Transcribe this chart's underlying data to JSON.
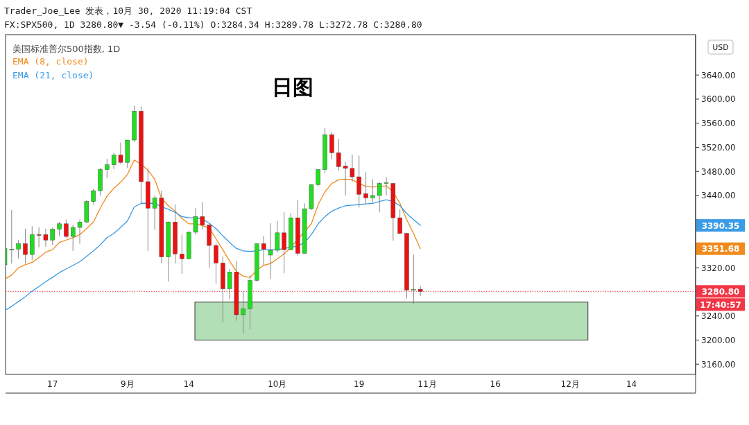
{
  "chart_data": {
    "type": "candlestick",
    "title": "日图",
    "subtitle": "Trader_Joe_Lee 发表，10月 30, 2020 11:19:04 CST",
    "categories": [
      null,
      null,
      null,
      null,
      null,
      null,
      null,
      "17",
      null,
      null,
      null,
      null,
      null,
      null,
      null,
      null,
      null,
      null,
      "9月",
      null,
      null,
      null,
      null,
      null,
      null,
      null,
      null,
      "14",
      null,
      null,
      null,
      null,
      null,
      null,
      null,
      null,
      null,
      null,
      null,
      null,
      "10月",
      null,
      null,
      null,
      null,
      null,
      null,
      null,
      null,
      null,
      null,
      null,
      "19",
      null,
      null,
      null,
      null,
      null,
      null,
      null,
      null,
      null,
      "11月",
      null,
      null,
      null,
      null,
      null,
      null,
      null,
      null,
      null,
      "16",
      null,
      null,
      null,
      null,
      null,
      null,
      null,
      null,
      null,
      null,
      "12月",
      null,
      null,
      null,
      null,
      null,
      null,
      null,
      null,
      "14",
      null,
      null,
      null,
      null,
      null,
      null,
      null,
      null,
      null
    ],
    "ohlc": [
      [
        3325,
        3354,
        3323,
        3352
      ],
      [
        3351,
        3416,
        3327,
        3351
      ],
      [
        3351,
        3366,
        3335,
        3360
      ],
      [
        3360,
        3385,
        3327,
        3342
      ],
      [
        3342,
        3389,
        3333,
        3375
      ],
      [
        3375,
        3387,
        3354,
        3374
      ],
      [
        3375,
        3385,
        3355,
        3366
      ],
      [
        3366,
        3387,
        3358,
        3384
      ],
      [
        3384,
        3396,
        3373,
        3393
      ],
      [
        3393,
        3400,
        3370,
        3372
      ],
      [
        3372,
        3391,
        3348,
        3387
      ],
      [
        3387,
        3400,
        3360,
        3396
      ],
      [
        3396,
        3433,
        3394,
        3430
      ],
      [
        3430,
        3451,
        3425,
        3448
      ],
      [
        3448,
        3486,
        3440,
        3483
      ],
      [
        3483,
        3501,
        3469,
        3491
      ],
      [
        3491,
        3511,
        3484,
        3507
      ],
      [
        3507,
        3528,
        3492,
        3495
      ],
      [
        3495,
        3532,
        3486,
        3532
      ],
      [
        3532,
        3589,
        3529,
        3580
      ],
      [
        3580,
        3588,
        3427,
        3463
      ],
      [
        3463,
        3485,
        3348,
        3419
      ],
      [
        3419,
        3440,
        3383,
        3436
      ],
      [
        3436,
        3448,
        3328,
        3338
      ],
      [
        3338,
        3397,
        3297,
        3396
      ],
      [
        3396,
        3425,
        3327,
        3343
      ],
      [
        3343,
        3375,
        3310,
        3335
      ],
      [
        3335,
        3381,
        3334,
        3379
      ],
      [
        3379,
        3419,
        3375,
        3405
      ],
      [
        3405,
        3429,
        3383,
        3391
      ],
      [
        3391,
        3394,
        3320,
        3357
      ],
      [
        3357,
        3362,
        3293,
        3328
      ],
      [
        3328,
        3339,
        3230,
        3285
      ],
      [
        3285,
        3318,
        3268,
        3313
      ],
      [
        3313,
        3331,
        3232,
        3242
      ],
      [
        3242,
        3281,
        3210,
        3252
      ],
      [
        3252,
        3308,
        3218,
        3299
      ],
      [
        3299,
        3361,
        3297,
        3360
      ],
      [
        3360,
        3373,
        3324,
        3351
      ],
      [
        3341,
        3394,
        3302,
        3349
      ],
      [
        3349,
        3398,
        3345,
        3378
      ],
      [
        3378,
        3412,
        3311,
        3350
      ],
      [
        3350,
        3411,
        3349,
        3403
      ],
      [
        3403,
        3433,
        3340,
        3344
      ],
      [
        3344,
        3427,
        3343,
        3418
      ],
      [
        3418,
        3459,
        3416,
        3458
      ],
      [
        3458,
        3484,
        3455,
        3483
      ],
      [
        3483,
        3552,
        3477,
        3541
      ],
      [
        3541,
        3545,
        3500,
        3511
      ],
      [
        3511,
        3534,
        3481,
        3488
      ],
      [
        3489,
        3496,
        3440,
        3485
      ],
      [
        3485,
        3508,
        3463,
        3471
      ],
      [
        3471,
        3506,
        3420,
        3442
      ],
      [
        3443,
        3479,
        3426,
        3436
      ],
      [
        3436,
        3467,
        3429,
        3440
      ],
      [
        3440,
        3462,
        3412,
        3460
      ],
      [
        3460,
        3470,
        3440,
        3461
      ],
      [
        3460,
        3461,
        3365,
        3403
      ],
      [
        3403,
        3417,
        3376,
        3377
      ],
      [
        3377,
        3378,
        3269,
        3283
      ],
      [
        3283,
        3342,
        3259,
        3284
      ],
      [
        3284.34,
        3289.78,
        3272.78,
        3280.8
      ],
      null,
      null,
      null,
      null,
      null,
      null,
      null,
      null,
      null,
      null,
      null,
      null,
      null,
      null,
      null,
      null,
      null,
      null,
      null,
      null,
      null,
      null,
      null,
      null,
      null,
      null,
      null,
      null,
      null,
      null,
      null,
      null,
      null,
      null,
      null,
      null,
      null,
      null,
      null,
      null
    ],
    "series": [
      {
        "name": "EMA (8, close)",
        "type": "line",
        "color": "#f08a1c",
        "values": [
          3301,
          3308,
          3320,
          3325,
          3329,
          3337,
          3346,
          3350,
          3362,
          3366,
          3370,
          3375,
          3385,
          3396,
          3419,
          3439,
          3452,
          3462,
          3475,
          3499,
          3492,
          3482,
          3467,
          3435,
          3423,
          3414,
          3402,
          3393,
          3393,
          3390,
          3386,
          3368,
          3350,
          3331,
          3314,
          3306,
          3304,
          3316,
          3324,
          3327,
          3335,
          3343,
          3354,
          null,
          null,
          3393,
          3425,
          3446,
          3460,
          3466,
          3467,
          3466,
          3460,
          3455,
          3454,
          3455,
          3456,
          3446,
          3427,
          3400,
          3377,
          3351.68,
          null,
          null,
          null,
          null,
          null,
          null,
          null,
          null,
          null,
          null,
          null,
          null,
          null,
          null,
          null,
          null,
          null,
          null,
          null,
          null,
          null,
          null,
          null,
          null,
          null,
          null,
          null,
          null,
          null,
          null,
          null,
          null,
          null,
          null,
          null,
          null,
          null,
          null,
          null,
          null
        ]
      },
      {
        "name": "EMA (21, close)",
        "type": "line",
        "color": "#3a9be6",
        "values": [
          3249,
          3256,
          3264,
          3272,
          3281,
          3289,
          3297,
          3304,
          3312,
          3318,
          3324,
          3330,
          3339,
          3348,
          3358,
          3370,
          3377,
          3387,
          3398,
          3421,
          3427,
          3427,
          3427,
          3421,
          3417,
          3412,
          3405,
          3403,
          3403,
          3401,
          3394,
          3385,
          3373,
          3362,
          3352,
          3348,
          3347,
          3348,
          3350,
          3350,
          3350,
          3352,
          3354,
          3356,
          3362,
          3375,
          3393,
          3405,
          3414,
          3419,
          3423,
          3424,
          3425,
          3426,
          3427,
          3430,
          3433,
          3430,
          3423,
          3410,
          3400,
          3390.35,
          null,
          null,
          null,
          null,
          null,
          null,
          null,
          null,
          null,
          null,
          null,
          null,
          null,
          null,
          null,
          null,
          null,
          null,
          null,
          null,
          null,
          null,
          null,
          null,
          null,
          null,
          null,
          null,
          null,
          null,
          null,
          null,
          null,
          null,
          null,
          null,
          null,
          null,
          null,
          null
        ]
      }
    ],
    "ylim": [
      3143,
      3707
    ],
    "yticks": [
      {
        "value": 3160,
        "label": "3160.00"
      },
      {
        "value": 3200,
        "label": "3200.00"
      },
      {
        "value": 3240,
        "label": "3240.00"
      },
      {
        "value": 3280,
        "label": null
      },
      {
        "value": 3320,
        "label": "3320.00"
      },
      {
        "value": 3360,
        "label": null
      },
      {
        "value": 3400,
        "label": null
      },
      {
        "value": 3440,
        "label": "3440.00"
      },
      {
        "value": 3480,
        "label": "3480.00"
      },
      {
        "value": 3520,
        "label": "3520.00"
      },
      {
        "value": 3560,
        "label": "3560.00"
      },
      {
        "value": 3600,
        "label": "3600.00"
      },
      {
        "value": 3640,
        "label": "3640.00"
      }
    ],
    "ref_lines": [
      {
        "axis": "y",
        "value": 3280.8,
        "label": "3280.80",
        "color": "#f23645",
        "line_style": "dotted"
      }
    ],
    "bands": [
      {
        "axis": "y",
        "from": 3200,
        "to": 3263,
        "color": "#b3dfb6"
      }
    ],
    "legend": "top left",
    "annotations": [
      "FX:SPX500, 1D 3280.80▼ -3.54 (-0.11%) O:3284.34 H:3289.78 L:3272.78 C:3280.80",
      "美国标准普尔500指数, 1D",
      "USD",
      "17:40:57",
      "3351.68",
      "3390.35"
    ]
  }
}
